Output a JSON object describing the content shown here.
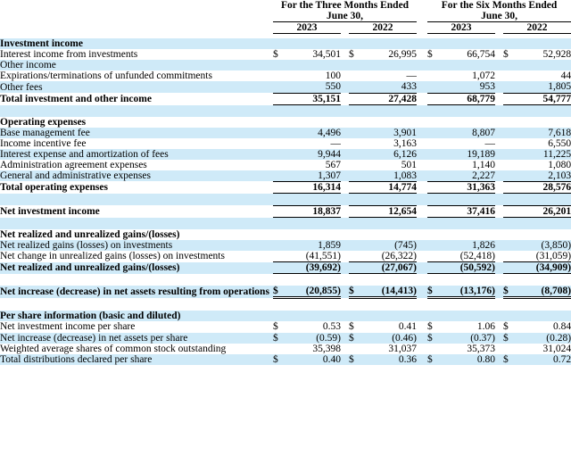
{
  "document": {
    "type": "financial-statement-of-operations",
    "colors": {
      "row_highlight": "#cfeaf8",
      "text": "#000000",
      "rule": "#000000"
    },
    "period_headers": [
      {
        "line1": "For the Three Months Ended",
        "line2": "June 30,"
      },
      {
        "line1": "For the Six Months Ended",
        "line2": "June 30,"
      }
    ],
    "year_headers": [
      "2023",
      "2022",
      "2023",
      "2022"
    ],
    "rows": [
      {
        "label": "Investment income",
        "bold": true,
        "bg": "blue"
      },
      {
        "label": "Interest income from investments",
        "bg": "white",
        "dollar": true,
        "values": [
          "34,501",
          "26,995",
          "66,754",
          "52,928"
        ]
      },
      {
        "label": "Other income",
        "bg": "blue"
      },
      {
        "label": "Expirations/terminations of unfunded commitments",
        "indent": true,
        "bg": "white",
        "values": [
          "100",
          "—",
          "1,072",
          "44"
        ]
      },
      {
        "label": "Other fees",
        "indent": true,
        "bg": "blue",
        "values": [
          "550",
          "433",
          "953",
          "1,805"
        ],
        "border": "bottom"
      },
      {
        "label": "Total investment and other income",
        "bold": true,
        "bg": "white",
        "values": [
          "35,151",
          "27,428",
          "68,779",
          "54,777"
        ],
        "border": "bottom"
      },
      {
        "blank": true,
        "bg": "blue"
      },
      {
        "label": "Operating expenses",
        "bold": true,
        "bg": "white"
      },
      {
        "label": "Base management fee",
        "bg": "blue",
        "values": [
          "4,496",
          "3,901",
          "8,807",
          "7,618"
        ]
      },
      {
        "label": "Income incentive fee",
        "bg": "white",
        "values": [
          "—",
          "3,163",
          "—",
          "6,550"
        ]
      },
      {
        "label": "Interest expense and amortization of fees",
        "bg": "blue",
        "values": [
          "9,944",
          "6,126",
          "19,189",
          "11,225"
        ]
      },
      {
        "label": "Administration agreement expenses",
        "bg": "white",
        "values": [
          "567",
          "501",
          "1,140",
          "1,080"
        ]
      },
      {
        "label": "General and administrative expenses",
        "bg": "blue",
        "values": [
          "1,307",
          "1,083",
          "2,227",
          "2,103"
        ],
        "border": "bottom"
      },
      {
        "label": "Total operating expenses",
        "bold": true,
        "bg": "white",
        "values": [
          "16,314",
          "14,774",
          "31,363",
          "28,576"
        ],
        "border": "bottom"
      },
      {
        "blank": true,
        "bg": "blue"
      },
      {
        "label": "Net investment income",
        "bold": true,
        "bg": "white",
        "values": [
          "18,837",
          "12,654",
          "37,416",
          "26,201"
        ],
        "border": "topbottom"
      },
      {
        "blank": true,
        "bg": "blue"
      },
      {
        "label": "Net realized and unrealized gains/(losses)",
        "bold": true,
        "bg": "white"
      },
      {
        "label": "Net realized gains (losses) on investments",
        "bg": "blue",
        "values": [
          "1,859",
          "(745)",
          "1,826",
          "(3,850)"
        ]
      },
      {
        "label": "Net change in unrealized gains (losses) on investments",
        "bg": "white",
        "values": [
          "(41,551)",
          "(26,322)",
          "(52,418)",
          "(31,059)"
        ],
        "border": "bottom"
      },
      {
        "label": "Net realized and unrealized gains/(losses)",
        "bold": true,
        "bg": "blue",
        "values": [
          "(39,692)",
          "(27,067)",
          "(50,592)",
          "(34,909)"
        ],
        "border": "bottom"
      },
      {
        "blank": true,
        "bg": "white"
      },
      {
        "label": "Net increase (decrease) in net assets resulting from operations",
        "bold": true,
        "bg": "blue",
        "dollar": true,
        "values": [
          "(20,855)",
          "(14,413)",
          "(13,176)",
          "(8,708)"
        ],
        "border": "double"
      },
      {
        "blank": true,
        "bg": "white"
      },
      {
        "label": "Per share information (basic and diluted)",
        "bold": true,
        "bg": "blue"
      },
      {
        "label": "Net investment income per share",
        "bg": "white",
        "dollar": true,
        "values": [
          "0.53",
          "0.41",
          "1.06",
          "0.84"
        ]
      },
      {
        "label": "Net increase (decrease) in net assets per share",
        "bg": "blue",
        "dollar": true,
        "values": [
          "(0.59)",
          "(0.46)",
          "(0.37)",
          "(0.28)"
        ]
      },
      {
        "label": "Weighted average shares of common stock outstanding",
        "bg": "white",
        "values": [
          "35,398",
          "31,037",
          "35,373",
          "31,024"
        ]
      },
      {
        "label": "Total distributions declared per share",
        "bg": "blue",
        "dollar": true,
        "values": [
          "0.40",
          "0.36",
          "0.80",
          "0.72"
        ]
      }
    ]
  }
}
